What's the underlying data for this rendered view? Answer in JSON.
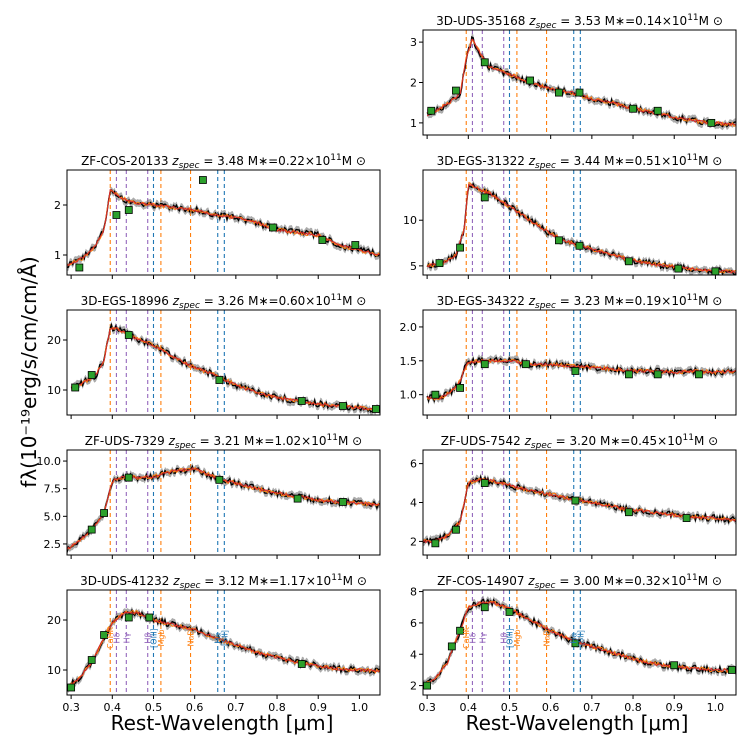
{
  "figure": {
    "ylabel": "fλ(10⁻¹⁹erg/s/cm/cm/Å)",
    "xlabel": "Rest-Wavelength [μm]",
    "colors": {
      "data": "#000000",
      "error_band": "#666666",
      "model_orange": "#ff7f0e",
      "model_red": "#d62728",
      "photometry": "#2ca02c",
      "line_orange": "#ff7f0e",
      "line_purple": "#9467bd",
      "line_blue": "#1f77b4"
    },
    "spectral_lines": [
      {
        "label": "CaHK",
        "wavelength": 0.395,
        "color": "orange"
      },
      {
        "label": "Hδ",
        "wavelength": 0.41,
        "color": "purple"
      },
      {
        "label": "Hγ",
        "wavelength": 0.434,
        "color": "purple"
      },
      {
        "label": "Hβ",
        "wavelength": 0.486,
        "color": "purple"
      },
      {
        "label": "[OIII]",
        "wavelength": 0.5,
        "color": "blue"
      },
      {
        "label": "Mgb",
        "wavelength": 0.518,
        "color": "orange"
      },
      {
        "label": "NaD",
        "wavelength": 0.59,
        "color": "orange"
      },
      {
        "label": "Hα",
        "wavelength": 0.656,
        "color": "blue"
      },
      {
        "label": "[SII]",
        "wavelength": 0.672,
        "color": "blue"
      }
    ]
  },
  "chart_data": [
    {
      "type": "line",
      "id": "3D-UDS-35168",
      "name": "3D-UDS-35168",
      "z": "3.53",
      "mass": "0.14",
      "xlim": [
        0.29,
        1.05
      ],
      "ylim": [
        0.7,
        3.3
      ],
      "yticks": [
        1,
        2,
        3
      ],
      "xticks": [],
      "show_line_labels": false,
      "spectrum": [
        [
          0.3,
          1.2
        ],
        [
          0.33,
          1.35
        ],
        [
          0.36,
          1.55
        ],
        [
          0.38,
          1.7
        ],
        [
          0.395,
          2.6
        ],
        [
          0.41,
          3.1
        ],
        [
          0.43,
          2.7
        ],
        [
          0.45,
          2.4
        ],
        [
          0.5,
          2.2
        ],
        [
          0.55,
          2.0
        ],
        [
          0.6,
          1.85
        ],
        [
          0.65,
          1.75
        ],
        [
          0.7,
          1.6
        ],
        [
          0.75,
          1.5
        ],
        [
          0.8,
          1.35
        ],
        [
          0.85,
          1.25
        ],
        [
          0.9,
          1.15
        ],
        [
          0.95,
          1.05
        ],
        [
          1.0,
          1.0
        ],
        [
          1.05,
          0.95
        ]
      ],
      "photometry": [
        [
          0.31,
          1.3
        ],
        [
          0.37,
          1.8
        ],
        [
          0.44,
          2.5
        ],
        [
          0.55,
          2.05
        ],
        [
          0.62,
          1.75
        ],
        [
          0.67,
          1.75
        ],
        [
          0.8,
          1.35
        ],
        [
          0.86,
          1.3
        ],
        [
          0.99,
          1.0
        ]
      ]
    },
    {
      "type": "line",
      "id": "ZF-COS-20133",
      "name": "ZF-COS-20133",
      "z": "3.48",
      "mass": "0.22",
      "xlim": [
        0.29,
        1.05
      ],
      "ylim": [
        0.6,
        2.7
      ],
      "yticks": [
        1,
        2
      ],
      "xticks": [],
      "show_line_labels": false,
      "spectrum": [
        [
          0.29,
          0.8
        ],
        [
          0.33,
          0.95
        ],
        [
          0.36,
          1.2
        ],
        [
          0.38,
          1.5
        ],
        [
          0.395,
          2.3
        ],
        [
          0.42,
          2.15
        ],
        [
          0.45,
          2.05
        ],
        [
          0.5,
          2.0
        ],
        [
          0.55,
          1.95
        ],
        [
          0.6,
          1.9
        ],
        [
          0.65,
          1.8
        ],
        [
          0.7,
          1.75
        ],
        [
          0.75,
          1.65
        ],
        [
          0.8,
          1.5
        ],
        [
          0.85,
          1.45
        ],
        [
          0.9,
          1.4
        ],
        [
          0.95,
          1.2
        ],
        [
          1.0,
          1.1
        ],
        [
          1.05,
          1.0
        ]
      ],
      "photometry": [
        [
          0.32,
          0.75
        ],
        [
          0.41,
          1.8
        ],
        [
          0.44,
          1.9
        ],
        [
          0.62,
          2.5
        ],
        [
          0.79,
          1.55
        ],
        [
          0.91,
          1.3
        ],
        [
          0.99,
          1.2
        ]
      ]
    },
    {
      "type": "line",
      "id": "3D-EGS-31322",
      "name": "3D-EGS-31322",
      "z": "3.44",
      "mass": "0.51",
      "xlim": [
        0.29,
        1.05
      ],
      "ylim": [
        4.0,
        15.5
      ],
      "yticks": [
        5,
        10
      ],
      "xticks": [],
      "show_line_labels": false,
      "spectrum": [
        [
          0.3,
          5.0
        ],
        [
          0.34,
          5.3
        ],
        [
          0.37,
          6.2
        ],
        [
          0.39,
          9.0
        ],
        [
          0.4,
          14.0
        ],
        [
          0.42,
          13.5
        ],
        [
          0.45,
          13.0
        ],
        [
          0.5,
          11.5
        ],
        [
          0.55,
          10.0
        ],
        [
          0.6,
          8.5
        ],
        [
          0.65,
          7.5
        ],
        [
          0.7,
          6.8
        ],
        [
          0.75,
          6.2
        ],
        [
          0.8,
          5.6
        ],
        [
          0.85,
          5.2
        ],
        [
          0.9,
          4.9
        ],
        [
          0.95,
          4.6
        ],
        [
          1.0,
          4.5
        ],
        [
          1.05,
          4.3
        ]
      ],
      "photometry": [
        [
          0.33,
          5.3
        ],
        [
          0.38,
          7.0
        ],
        [
          0.44,
          12.5
        ],
        [
          0.62,
          7.8
        ],
        [
          0.67,
          7.2
        ],
        [
          0.79,
          5.5
        ],
        [
          0.91,
          4.7
        ],
        [
          1.0,
          4.4
        ]
      ]
    },
    {
      "type": "line",
      "id": "3D-EGS-18996",
      "name": "3D-EGS-18996",
      "z": "3.26",
      "mass": "0.60",
      "xlim": [
        0.29,
        1.05
      ],
      "ylim": [
        5.0,
        26.0
      ],
      "yticks": [
        10,
        20
      ],
      "xticks": [],
      "show_line_labels": false,
      "spectrum": [
        [
          0.3,
          10.5
        ],
        [
          0.33,
          11.5
        ],
        [
          0.36,
          13.0
        ],
        [
          0.38,
          16.0
        ],
        [
          0.395,
          22.5
        ],
        [
          0.42,
          22.0
        ],
        [
          0.45,
          20.5
        ],
        [
          0.5,
          19.0
        ],
        [
          0.55,
          16.5
        ],
        [
          0.6,
          14.5
        ],
        [
          0.65,
          13.0
        ],
        [
          0.7,
          11.0
        ],
        [
          0.75,
          9.5
        ],
        [
          0.8,
          8.5
        ],
        [
          0.85,
          7.8
        ],
        [
          0.9,
          7.2
        ],
        [
          0.95,
          6.8
        ],
        [
          1.0,
          6.5
        ],
        [
          1.05,
          6.0
        ]
      ],
      "photometry": [
        [
          0.31,
          10.5
        ],
        [
          0.35,
          13.0
        ],
        [
          0.44,
          21.0
        ],
        [
          0.66,
          12.0
        ],
        [
          0.86,
          7.8
        ],
        [
          0.96,
          6.8
        ],
        [
          1.04,
          6.2
        ]
      ]
    },
    {
      "type": "line",
      "id": "3D-EGS-34322",
      "name": "3D-EGS-34322",
      "z": "3.23",
      "mass": "0.19",
      "xlim": [
        0.29,
        1.05
      ],
      "ylim": [
        0.7,
        2.25
      ],
      "yticks": [
        1.0,
        1.5,
        2.0
      ],
      "yticks_labels": [
        "1.0",
        "1.5",
        "2.0"
      ],
      "xticks": [],
      "show_line_labels": false,
      "spectrum": [
        [
          0.3,
          0.95
        ],
        [
          0.33,
          0.95
        ],
        [
          0.36,
          1.05
        ],
        [
          0.38,
          1.2
        ],
        [
          0.395,
          1.45
        ],
        [
          0.42,
          1.5
        ],
        [
          0.45,
          1.5
        ],
        [
          0.5,
          1.5
        ],
        [
          0.55,
          1.45
        ],
        [
          0.6,
          1.45
        ],
        [
          0.65,
          1.42
        ],
        [
          0.7,
          1.4
        ],
        [
          0.75,
          1.38
        ],
        [
          0.8,
          1.35
        ],
        [
          0.85,
          1.35
        ],
        [
          0.9,
          1.33
        ],
        [
          0.95,
          1.35
        ],
        [
          1.0,
          1.33
        ],
        [
          1.05,
          1.35
        ]
      ],
      "photometry": [
        [
          0.32,
          1.0
        ],
        [
          0.38,
          1.1
        ],
        [
          0.44,
          1.45
        ],
        [
          0.54,
          1.45
        ],
        [
          0.66,
          1.35
        ],
        [
          0.79,
          1.3
        ],
        [
          0.86,
          1.3
        ],
        [
          0.96,
          1.3
        ]
      ]
    },
    {
      "type": "line",
      "id": "ZF-UDS-7329",
      "name": "ZF-UDS-7329",
      "z": "3.21",
      "mass": "1.02",
      "xlim": [
        0.29,
        1.05
      ],
      "ylim": [
        1.5,
        11.0
      ],
      "yticks": [
        2.5,
        5.0,
        7.5,
        10.0
      ],
      "yticks_labels": [
        "2.5",
        "5.0",
        "7.5",
        "10.0"
      ],
      "xticks": [],
      "show_line_labels": false,
      "spectrum": [
        [
          0.29,
          2.0
        ],
        [
          0.32,
          2.8
        ],
        [
          0.35,
          3.8
        ],
        [
          0.38,
          5.3
        ],
        [
          0.4,
          8.2
        ],
        [
          0.43,
          8.6
        ],
        [
          0.46,
          8.5
        ],
        [
          0.5,
          8.6
        ],
        [
          0.55,
          9.1
        ],
        [
          0.6,
          9.3
        ],
        [
          0.65,
          8.5
        ],
        [
          0.7,
          8.0
        ],
        [
          0.75,
          7.5
        ],
        [
          0.8,
          7.1
        ],
        [
          0.85,
          6.8
        ],
        [
          0.9,
          6.5
        ],
        [
          0.95,
          6.3
        ],
        [
          1.0,
          6.2
        ],
        [
          1.05,
          6.0
        ]
      ],
      "photometry": [
        [
          0.35,
          3.8
        ],
        [
          0.38,
          5.3
        ],
        [
          0.44,
          8.5
        ],
        [
          0.66,
          8.3
        ],
        [
          0.85,
          6.6
        ],
        [
          0.96,
          6.3
        ]
      ]
    },
    {
      "type": "line",
      "id": "ZF-UDS-7542",
      "name": "ZF-UDS-7542",
      "z": "3.20",
      "mass": "0.45",
      "xlim": [
        0.29,
        1.05
      ],
      "ylim": [
        1.3,
        6.7
      ],
      "yticks": [
        2,
        4,
        6
      ],
      "xticks": [],
      "show_line_labels": false,
      "spectrum": [
        [
          0.29,
          2.0
        ],
        [
          0.32,
          2.0
        ],
        [
          0.35,
          2.3
        ],
        [
          0.38,
          3.0
        ],
        [
          0.4,
          5.0
        ],
        [
          0.43,
          5.2
        ],
        [
          0.46,
          5.1
        ],
        [
          0.5,
          4.9
        ],
        [
          0.55,
          4.6
        ],
        [
          0.6,
          4.4
        ],
        [
          0.65,
          4.2
        ],
        [
          0.7,
          4.0
        ],
        [
          0.75,
          3.8
        ],
        [
          0.8,
          3.6
        ],
        [
          0.85,
          3.5
        ],
        [
          0.9,
          3.35
        ],
        [
          0.95,
          3.25
        ],
        [
          1.0,
          3.2
        ],
        [
          1.05,
          3.1
        ]
      ],
      "photometry": [
        [
          0.32,
          1.9
        ],
        [
          0.37,
          2.6
        ],
        [
          0.44,
          5.0
        ],
        [
          0.66,
          4.1
        ],
        [
          0.79,
          3.5
        ],
        [
          0.93,
          3.2
        ]
      ]
    },
    {
      "type": "line",
      "id": "3D-UDS-41232",
      "name": "3D-UDS-41232",
      "z": "3.12",
      "mass": "1.17",
      "xlim": [
        0.29,
        1.05
      ],
      "ylim": [
        5.0,
        26.0
      ],
      "yticks": [
        10,
        20
      ],
      "xticks": [
        0.3,
        0.4,
        0.5,
        0.6,
        0.7,
        0.8,
        0.9,
        1.0
      ],
      "show_line_labels": true,
      "spectrum": [
        [
          0.29,
          6.5
        ],
        [
          0.32,
          8.5
        ],
        [
          0.35,
          11.5
        ],
        [
          0.38,
          16.5
        ],
        [
          0.4,
          19.5
        ],
        [
          0.43,
          21.5
        ],
        [
          0.46,
          21.5
        ],
        [
          0.5,
          20.0
        ],
        [
          0.55,
          19.0
        ],
        [
          0.6,
          18.0
        ],
        [
          0.65,
          16.5
        ],
        [
          0.7,
          15.0
        ],
        [
          0.75,
          13.5
        ],
        [
          0.8,
          12.5
        ],
        [
          0.85,
          11.5
        ],
        [
          0.9,
          10.8
        ],
        [
          0.95,
          10.2
        ],
        [
          1.0,
          10.0
        ],
        [
          1.05,
          9.8
        ]
      ],
      "photometry": [
        [
          0.3,
          6.5
        ],
        [
          0.35,
          12.0
        ],
        [
          0.38,
          17.0
        ],
        [
          0.44,
          20.5
        ],
        [
          0.49,
          20.5
        ],
        [
          0.86,
          11.2
        ]
      ]
    },
    {
      "type": "line",
      "id": "ZF-COS-14907",
      "name": "ZF-COS-14907",
      "z": "3.00",
      "mass": "0.32",
      "xlim": [
        0.29,
        1.05
      ],
      "ylim": [
        1.4,
        8.1
      ],
      "yticks": [
        2,
        4,
        6,
        8
      ],
      "xticks": [
        0.3,
        0.4,
        0.5,
        0.6,
        0.7,
        0.8,
        0.9,
        1.0
      ],
      "show_line_labels": true,
      "spectrum": [
        [
          0.29,
          2.0
        ],
        [
          0.32,
          2.5
        ],
        [
          0.35,
          3.5
        ],
        [
          0.38,
          5.5
        ],
        [
          0.4,
          7.0
        ],
        [
          0.43,
          7.3
        ],
        [
          0.46,
          7.3
        ],
        [
          0.5,
          6.9
        ],
        [
          0.55,
          6.2
        ],
        [
          0.6,
          5.5
        ],
        [
          0.65,
          4.9
        ],
        [
          0.7,
          4.5
        ],
        [
          0.75,
          4.1
        ],
        [
          0.8,
          3.7
        ],
        [
          0.85,
          3.4
        ],
        [
          0.9,
          3.2
        ],
        [
          0.95,
          3.1
        ],
        [
          1.0,
          3.0
        ],
        [
          1.05,
          2.95
        ]
      ],
      "photometry": [
        [
          0.3,
          2.0
        ],
        [
          0.36,
          4.5
        ],
        [
          0.38,
          5.5
        ],
        [
          0.44,
          7.0
        ],
        [
          0.5,
          6.7
        ],
        [
          0.66,
          4.7
        ],
        [
          0.9,
          3.3
        ],
        [
          1.04,
          3.0
        ]
      ]
    }
  ]
}
